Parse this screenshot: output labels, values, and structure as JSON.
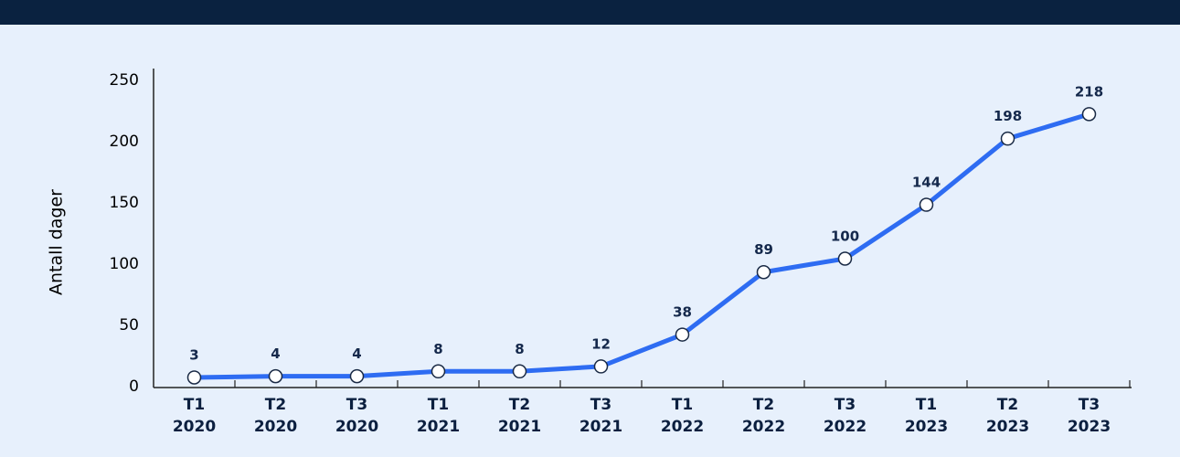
{
  "chart_data": {
    "type": "line",
    "ylabel": "Antall dager",
    "categories": [
      [
        "T1",
        "2020"
      ],
      [
        "T2",
        "2020"
      ],
      [
        "T3",
        "2020"
      ],
      [
        "T1",
        "2021"
      ],
      [
        "T2",
        "2021"
      ],
      [
        "T3",
        "2021"
      ],
      [
        "T1",
        "2022"
      ],
      [
        "T2",
        "2022"
      ],
      [
        "T3",
        "2022"
      ],
      [
        "T1",
        "2023"
      ],
      [
        "T2",
        "2023"
      ],
      [
        "T3",
        "2023"
      ]
    ],
    "values": [
      3,
      4,
      4,
      8,
      8,
      12,
      38,
      89,
      100,
      144,
      198,
      218
    ],
    "color": "#2e6cf2",
    "ylim": [
      0,
      250
    ],
    "yticks": [
      0,
      50,
      100,
      150,
      200,
      250
    ],
    "grid": false
  }
}
